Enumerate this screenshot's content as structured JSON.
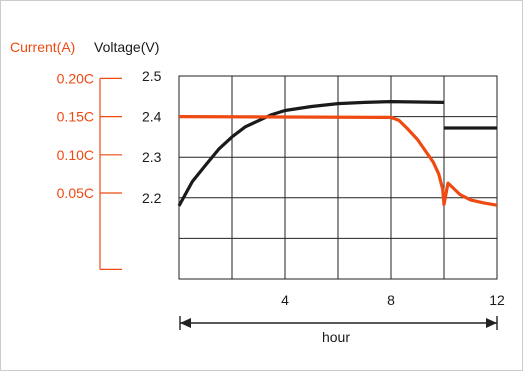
{
  "colors": {
    "current": "#ee4a12",
    "voltage": "#1a1a1a",
    "grid": "#222222",
    "frame": "#cccccc"
  },
  "chart_data": {
    "type": "line",
    "xlabel": "hour",
    "current_axis_label": "Current(A)",
    "voltage_axis_label": "Voltage(V)",
    "xlim": [
      0,
      12
    ],
    "x_ticks": [
      4,
      8,
      12
    ],
    "voltage_ylim": [
      2.0,
      2.5
    ],
    "voltage_ticks": [
      {
        "value": 2.5,
        "label": "2.5"
      },
      {
        "value": 2.4,
        "label": "2.4"
      },
      {
        "value": 2.3,
        "label": "2.3"
      },
      {
        "value": 2.2,
        "label": "2.2"
      }
    ],
    "current_ticks": [
      {
        "value": 0.2,
        "label": "0.20C"
      },
      {
        "value": 0.15,
        "label": "0.15C"
      },
      {
        "value": 0.1,
        "label": "0.10C"
      },
      {
        "value": 0.05,
        "label": "0.05C"
      }
    ],
    "current_axis_min": -0.05,
    "grid": true,
    "series": [
      {
        "name": "Voltage(V)",
        "axis": "voltage",
        "segments": [
          {
            "x": [
              0,
              0.5,
              1,
              1.5,
              2,
              2.5,
              3,
              3.5,
              4,
              5,
              6,
              7,
              8,
              9,
              10
            ],
            "y": [
              2.18,
              2.24,
              2.28,
              2.32,
              2.35,
              2.375,
              2.39,
              2.405,
              2.415,
              2.425,
              2.432,
              2.435,
              2.437,
              2.436,
              2.435
            ]
          },
          {
            "x": [
              10,
              12
            ],
            "y": [
              2.372,
              2.372
            ]
          }
        ]
      },
      {
        "name": "Current(A)",
        "axis": "current",
        "segments": [
          {
            "x": [
              0,
              8,
              8.3,
              8.6,
              9,
              9.3,
              9.6,
              9.8,
              9.95,
              10,
              10.15,
              10.3,
              10.6,
              11,
              11.5,
              12
            ],
            "y": [
              0.15,
              0.149,
              0.145,
              0.135,
              0.12,
              0.105,
              0.09,
              0.075,
              0.055,
              0.035,
              0.063,
              0.058,
              0.048,
              0.041,
              0.037,
              0.034
            ]
          }
        ]
      }
    ]
  }
}
